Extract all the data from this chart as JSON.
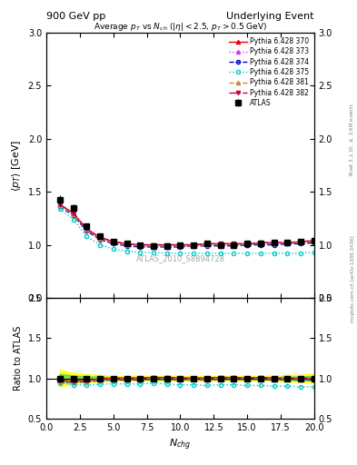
{
  "title_left": "900 GeV pp",
  "title_right": "Underlying Event",
  "plot_title": "Average $p_T$ vs $N_{ch}$ ($|\\eta| < 2.5$, $p_T > 0.5$ GeV)",
  "xlabel": "$N_{chg}$",
  "ylabel_main": "$\\langle p_T \\rangle$ [GeV]",
  "ylabel_ratio": "Ratio to ATLAS",
  "watermark": "ATLAS_2010_S8894728",
  "right_label": "Rivet 3.1.10, $\\geq$ 2.6M events",
  "right_label2": "mcplots.cern.ch [arXiv:1306.3436]",
  "xdata": [
    1,
    2,
    3,
    4,
    5,
    6,
    7,
    8,
    9,
    10,
    11,
    12,
    13,
    14,
    15,
    16,
    17,
    18,
    19,
    20
  ],
  "atlas_y": [
    1.42,
    1.35,
    1.18,
    1.08,
    1.03,
    1.01,
    1.0,
    0.99,
    0.99,
    1.0,
    1.0,
    1.01,
    1.0,
    1.0,
    1.01,
    1.01,
    1.02,
    1.02,
    1.03,
    1.04
  ],
  "atlas_yerr": [
    0.05,
    0.03,
    0.02,
    0.015,
    0.01,
    0.01,
    0.01,
    0.01,
    0.01,
    0.01,
    0.01,
    0.01,
    0.01,
    0.01,
    0.01,
    0.01,
    0.01,
    0.015,
    0.015,
    0.02
  ],
  "py370_y": [
    1.38,
    1.3,
    1.15,
    1.07,
    1.03,
    1.01,
    1.0,
    1.0,
    1.0,
    1.0,
    1.0,
    1.01,
    1.01,
    1.01,
    1.01,
    1.02,
    1.02,
    1.02,
    1.03,
    1.04
  ],
  "py373_y": [
    1.37,
    1.29,
    1.14,
    1.06,
    1.02,
    1.0,
    0.99,
    0.99,
    0.99,
    0.99,
    0.99,
    1.0,
    1.0,
    1.0,
    1.0,
    1.01,
    1.01,
    1.01,
    1.02,
    1.03
  ],
  "py374_y": [
    1.36,
    1.28,
    1.13,
    1.05,
    1.01,
    0.99,
    0.98,
    0.98,
    0.98,
    0.98,
    0.99,
    0.99,
    0.99,
    0.99,
    1.0,
    1.0,
    1.0,
    1.01,
    1.01,
    1.02
  ],
  "py375_y": [
    1.34,
    1.24,
    1.08,
    1.0,
    0.96,
    0.94,
    0.93,
    0.93,
    0.92,
    0.92,
    0.92,
    0.92,
    0.92,
    0.92,
    0.92,
    0.92,
    0.92,
    0.92,
    0.92,
    0.93
  ],
  "py381_y": [
    1.37,
    1.29,
    1.14,
    1.06,
    1.02,
    1.0,
    0.99,
    0.99,
    0.99,
    0.99,
    0.99,
    1.0,
    1.0,
    1.0,
    1.01,
    1.01,
    1.01,
    1.02,
    1.02,
    1.03
  ],
  "py382_y": [
    1.38,
    1.3,
    1.15,
    1.07,
    1.03,
    1.01,
    1.0,
    1.0,
    1.0,
    1.0,
    1.0,
    1.01,
    1.01,
    1.01,
    1.01,
    1.02,
    1.02,
    1.02,
    1.03,
    1.04
  ],
  "color_370": "#e8000b",
  "color_373": "#cc44cc",
  "color_374": "#0000cc",
  "color_375": "#00cccc",
  "color_381": "#cc8844",
  "color_382": "#cc0044",
  "atlas_color": "#000000",
  "atlas_errbandcolor_yellow": "#ffff00",
  "atlas_errbandcolor_green": "#00cc44",
  "ylim_main": [
    0.5,
    3.0
  ],
  "ylim_ratio": [
    0.5,
    2.0
  ],
  "xlim": [
    0,
    20
  ],
  "yticks_main": [
    0.5,
    1.0,
    1.5,
    2.0,
    2.5,
    3.0
  ],
  "yticks_ratio": [
    0.5,
    1.0,
    1.5,
    2.0
  ]
}
